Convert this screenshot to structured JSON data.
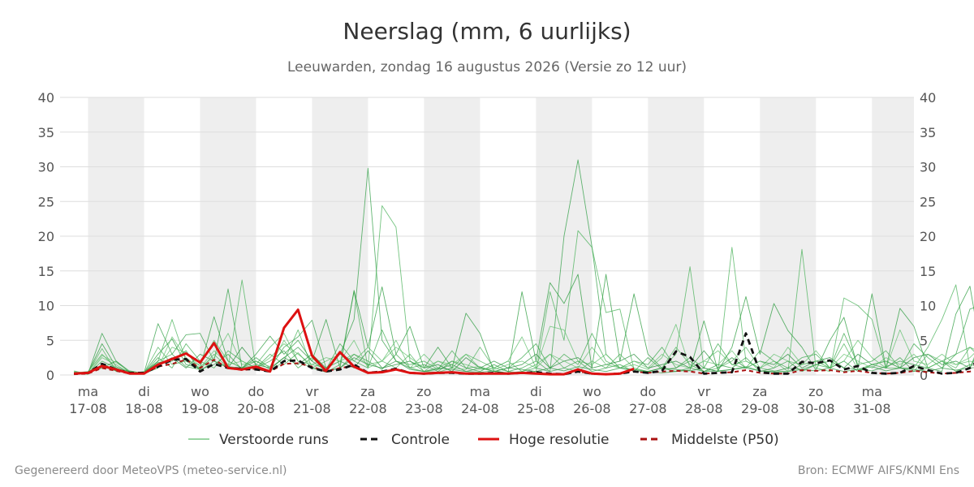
{
  "page": {
    "title": "Neerslag (mm, 6 uurlijks)",
    "subtitle": "Leeuwarden, zondag 16 augustus 2026 (Versie zo 12 uur)",
    "footer_left": "Gegenereerd door MeteoVPS (meteo-service.nl)",
    "footer_right": "Bron: ECMWF AIFS/KNMI Ens"
  },
  "chart_data": {
    "type": "line",
    "title": "Neerslag (mm, 6 uurlijks)",
    "subtitle": "Leeuwarden, zondag 16 augustus 2026 (Versie zo 12 uur)",
    "xlabel": "",
    "ylabel": "",
    "ylim": [
      0,
      40
    ],
    "yticks": [
      "0",
      "5",
      "10",
      "15",
      "20",
      "25",
      "30",
      "35",
      "40"
    ],
    "xlim": [
      "2026-08-16 12:00",
      "2026-08-31 18:00"
    ],
    "x_tick_labels": [
      {
        "day": "ma",
        "date": "17-08"
      },
      {
        "day": "di",
        "date": "18-08"
      },
      {
        "day": "wo",
        "date": "19-08"
      },
      {
        "day": "do",
        "date": "20-08"
      },
      {
        "day": "vr",
        "date": "21-08"
      },
      {
        "day": "za",
        "date": "22-08"
      },
      {
        "day": "zo",
        "date": "23-08"
      },
      {
        "day": "ma",
        "date": "24-08"
      },
      {
        "day": "di",
        "date": "25-08"
      },
      {
        "day": "wo",
        "date": "26-08"
      },
      {
        "day": "do",
        "date": "27-08"
      },
      {
        "day": "vr",
        "date": "28-08"
      },
      {
        "day": "za",
        "date": "29-08"
      },
      {
        "day": "zo",
        "date": "30-08"
      },
      {
        "day": "ma",
        "date": "31-08"
      }
    ],
    "shaded_days": [
      "17-08",
      "19-08",
      "21-08",
      "23-08",
      "25-08",
      "27-08",
      "29-08",
      "31-08"
    ],
    "grid": true,
    "right_axis": true,
    "legend_position": "bottom",
    "x_start": "2026-08-16 18:00",
    "x_step_hours": 6,
    "series": [
      {
        "name": "Hoge resolutie",
        "color": "#dd1111",
        "style": "solid",
        "values": [
          0.2,
          0.3,
          1.3,
          0.8,
          0.2,
          0.2,
          1.5,
          2.3,
          3.1,
          1.8,
          4.6,
          1.0,
          0.8,
          1.2,
          0.5,
          6.8,
          9.4,
          2.8,
          0.6,
          3.3,
          1.2,
          0.3,
          0.4,
          0.8,
          0.3,
          0.2,
          0.3,
          0.4,
          0.2,
          0.2,
          0.2,
          0.2,
          0.3,
          0.2,
          0.1,
          0.1,
          0.8,
          0.2,
          0.1,
          0.2,
          0.9
        ]
      },
      {
        "name": "Controle",
        "color": "#111111",
        "style": "dashed",
        "values": [
          0.2,
          0.3,
          1.6,
          0.8,
          0.3,
          0.3,
          1.2,
          2.2,
          2.3,
          0.5,
          1.6,
          1.0,
          0.9,
          0.8,
          0.5,
          2.0,
          2.1,
          1.0,
          0.5,
          0.8,
          1.5,
          0.3,
          0.5,
          0.9,
          0.3,
          0.2,
          0.3,
          0.3,
          0.2,
          0.2,
          0.3,
          0.2,
          0.3,
          0.4,
          0.2,
          0.1,
          0.5,
          0.2,
          0.1,
          0.2,
          0.5,
          0.3,
          0.6,
          3.4,
          2.6,
          0.2,
          0.3,
          0.4,
          6.0,
          0.4,
          0.2,
          0.2,
          1.9,
          1.7,
          2.1,
          0.8,
          1.3,
          0.3,
          0.2,
          0.3,
          1.3,
          0.7,
          0.2,
          0.3,
          1.0,
          2.9
        ]
      },
      {
        "name": "Middelste (P50)",
        "color": "#aa1111",
        "style": "dashed",
        "values": [
          0.1,
          0.2,
          1.0,
          0.6,
          0.2,
          0.2,
          1.2,
          1.6,
          2.2,
          1.0,
          2.2,
          1.0,
          0.7,
          0.9,
          0.5,
          1.6,
          1.7,
          1.2,
          0.5,
          1.0,
          1.3,
          0.3,
          0.5,
          0.8,
          0.3,
          0.2,
          0.3,
          0.4,
          0.2,
          0.2,
          0.3,
          0.2,
          0.3,
          0.3,
          0.2,
          0.1,
          0.5,
          0.2,
          0.1,
          0.2,
          0.5,
          0.3,
          0.5,
          0.6,
          0.5,
          0.2,
          0.3,
          0.4,
          0.7,
          0.3,
          0.2,
          0.2,
          0.7,
          0.6,
          0.7,
          0.4,
          0.6,
          0.3,
          0.2,
          0.3,
          0.6,
          0.4,
          0.2,
          0.3,
          0.5,
          0.8
        ]
      }
    ],
    "ensemble": {
      "name": "Verstoorde runs",
      "color": "#33aa44",
      "members": [
        [
          0.5,
          0.2,
          6.0,
          2.0,
          0.5,
          0.3,
          7.4,
          3.0,
          5.8,
          6.0,
          2.0,
          12.4,
          1.0,
          2.5,
          1.0,
          4.0,
          5.5,
          7.9,
          1.0,
          3.0,
          8.0,
          29.8,
          5.0,
          2.0,
          1.0,
          0.5,
          0.8,
          1.5,
          0.5,
          0.4,
          0.6,
          0.3,
          0.5,
          1.0,
          0.5,
          20.0,
          31.0,
          18.5,
          3.0,
          1.0,
          0.8,
          0.5,
          0.3,
          0.5,
          1.0,
          0.5,
          0.6,
          0.8,
          1.2,
          0.6,
          0.4,
          0.5,
          0.8,
          1.5,
          2.0,
          1.0,
          0.8,
          0.6,
          1.2,
          2.0,
          1.5,
          1.0,
          2.0,
          3.0,
          9.5,
          10.2
        ],
        [
          0.3,
          0.5,
          3.0,
          1.0,
          0.3,
          0.2,
          2.0,
          8.0,
          2.0,
          0.8,
          3.0,
          1.0,
          13.7,
          1.0,
          0.5,
          2.0,
          6.5,
          1.0,
          0.4,
          1.5,
          12.0,
          1.0,
          24.4,
          21.3,
          2.0,
          0.5,
          0.4,
          1.0,
          3.0,
          2.0,
          1.0,
          0.5,
          0.3,
          0.5,
          12.0,
          5.0,
          20.8,
          18.4,
          9.0,
          9.5,
          0.8,
          0.5,
          1.0,
          3.0,
          15.6,
          1.0,
          0.5,
          18.4,
          2.0,
          1.0,
          0.6,
          0.5,
          18.1,
          1.0,
          0.5,
          11.1,
          10.0,
          8.0,
          1.0,
          1.0,
          1.0,
          4.0,
          8.0,
          13.0,
          1.0,
          6.0
        ],
        [
          0.2,
          0.3,
          4.5,
          1.2,
          0.4,
          0.3,
          3.0,
          5.2,
          1.5,
          1.0,
          8.4,
          2.0,
          1.0,
          3.0,
          5.6,
          3.0,
          5.0,
          2.0,
          8.0,
          1.0,
          12.2,
          4.0,
          12.7,
          3.0,
          7.0,
          1.0,
          4.0,
          1.0,
          8.9,
          6.0,
          0.5,
          0.3,
          12.0,
          2.0,
          13.3,
          10.3,
          14.5,
          1.0,
          14.5,
          2.0,
          11.7,
          3.0,
          1.0,
          0.5,
          0.7,
          7.8,
          0.6,
          4.0,
          11.3,
          3.0,
          10.3,
          6.4,
          4.0,
          0.7,
          5.0,
          8.3,
          1.0,
          11.7,
          1.0,
          9.6,
          7.0,
          1.0,
          0.5,
          8.8,
          12.8,
          1.0
        ],
        [
          0.6,
          0.1,
          2.5,
          1.5,
          0.2,
          0.5,
          1.0,
          4.0,
          3.2,
          1.2,
          2.5,
          6.0,
          1.5,
          2.0,
          1.2,
          5.0,
          2.0,
          1.5,
          2.5,
          2.0,
          3.0,
          1.5,
          2.0,
          5.0,
          1.0,
          3.0,
          1.0,
          2.0,
          1.5,
          0.8,
          1.0,
          2.0,
          5.5,
          1.0,
          7.0,
          6.5,
          2.0,
          1.5,
          3.0,
          1.0,
          1.5,
          0.8,
          2.5,
          7.3,
          1.0,
          2.0,
          3.5,
          1.5,
          2.0,
          1.0,
          3.0,
          2.0,
          1.5,
          3.5,
          1.0,
          2.0,
          5.0,
          2.5,
          1.0,
          6.5,
          2.0,
          1.5,
          3.0,
          1.5,
          2.0,
          1.5
        ],
        [
          0.4,
          0.2,
          1.5,
          0.8,
          0.6,
          0.2,
          2.5,
          1.0,
          4.5,
          2.0,
          1.0,
          3.5,
          2.0,
          1.0,
          3.0,
          1.5,
          3.2,
          1.0,
          0.8,
          4.5,
          2.0,
          1.0,
          6.5,
          2.0,
          1.5,
          2.0,
          0.8,
          3.5,
          1.0,
          1.2,
          0.5,
          1.0,
          2.5,
          4.5,
          1.0,
          3.0,
          1.5,
          6.0,
          2.0,
          1.0,
          2.0,
          1.5,
          4.0,
          1.0,
          2.5,
          1.0,
          4.5,
          1.5,
          1.0,
          3.5,
          2.0,
          1.0,
          2.5,
          3.0,
          1.0,
          6.0,
          1.5,
          2.0,
          3.5,
          1.0,
          4.5,
          2.5,
          1.0,
          3.0,
          4.0,
          2.0
        ],
        [
          0.1,
          0.4,
          1.0,
          2.0,
          0.3,
          0.1,
          1.5,
          2.5,
          1.0,
          3.0,
          2.0,
          1.0,
          4.0,
          1.5,
          1.0,
          2.5,
          1.5,
          3.0,
          1.0,
          2.0,
          1.0,
          3.5,
          1.0,
          1.5,
          2.0,
          1.0,
          1.5,
          0.5,
          2.5,
          1.0,
          2.0,
          1.0,
          1.5,
          3.0,
          1.0,
          2.0,
          2.5,
          1.0,
          1.5,
          2.0,
          3.0,
          1.0,
          1.5,
          2.0,
          1.0,
          3.5,
          1.0,
          2.5,
          1.0,
          2.0,
          1.5,
          3.0,
          1.0,
          2.0,
          2.5,
          1.0,
          3.0,
          1.5,
          2.0,
          1.0,
          2.5,
          3.0,
          1.5,
          2.0,
          1.0,
          5.0
        ],
        [
          0.3,
          0.3,
          3.8,
          0.5,
          0.4,
          0.3,
          4.0,
          1.5,
          2.0,
          1.5,
          5.0,
          2.0,
          1.0,
          1.5,
          4.0,
          6.0,
          2.0,
          1.0,
          2.0,
          3.0,
          2.0,
          4.0,
          2.0,
          1.0,
          3.0,
          0.5,
          2.0,
          1.0,
          0.8,
          4.0,
          1.0,
          2.0,
          0.5,
          1.5,
          3.0,
          1.0,
          0.5,
          2.0,
          1.0,
          3.0,
          1.0,
          0.5,
          1.0,
          4.0,
          1.5,
          0.5,
          1.0,
          2.0,
          4.0,
          1.0,
          2.0,
          0.5,
          1.5,
          2.0,
          1.0,
          4.5,
          0.8,
          1.5,
          2.0,
          1.0,
          0.5,
          3.0,
          2.0,
          1.0,
          4.0,
          3.0
        ],
        [
          0.2,
          0.1,
          2.0,
          1.0,
          0.2,
          0.4,
          2.0,
          3.0,
          1.2,
          0.8,
          1.5,
          3.0,
          0.8,
          1.0,
          2.0,
          3.5,
          1.0,
          2.5,
          0.5,
          1.0,
          3.0,
          2.0,
          0.8,
          3.0,
          1.0,
          1.5,
          0.5,
          2.0,
          1.0,
          0.5,
          1.5,
          0.5,
          1.0,
          2.0,
          0.5,
          1.0,
          2.0,
          0.5,
          1.0,
          1.5,
          0.5,
          2.5,
          0.8,
          1.0,
          2.0,
          0.5,
          1.5,
          1.0,
          2.5,
          0.5,
          1.0,
          2.0,
          0.5,
          1.5,
          1.0,
          2.0,
          0.5,
          1.5,
          1.0,
          2.5,
          0.5,
          1.0,
          2.0,
          0.5,
          1.5,
          1.0
        ],
        [
          0.4,
          0.2,
          2.8,
          1.8,
          0.5,
          0.2,
          1.0,
          5.5,
          2.5,
          1.0,
          3.5,
          1.5,
          2.0,
          1.0,
          2.5,
          4.5,
          3.0,
          1.5,
          1.0,
          2.0,
          5.0,
          1.0,
          2.0,
          4.0,
          2.5,
          1.0,
          2.0,
          1.5,
          3.0,
          1.0,
          0.8,
          1.5,
          2.0,
          1.0,
          3.0,
          2.0,
          1.0,
          4.0,
          1.5,
          1.0,
          2.0,
          1.0,
          3.0,
          1.5,
          1.0,
          2.0,
          1.5,
          3.5,
          1.0,
          2.0,
          1.0,
          4.0,
          1.5,
          2.0,
          1.0,
          3.0,
          2.0,
          1.0,
          2.5,
          1.5,
          3.0,
          1.0,
          2.0,
          1.5,
          2.5,
          4.5
        ],
        [
          0.2,
          0.3,
          1.2,
          0.6,
          0.3,
          0.3,
          1.8,
          2.0,
          3.5,
          0.6,
          2.0,
          1.2,
          1.0,
          2.0,
          0.8,
          2.5,
          4.0,
          2.0,
          0.6,
          1.0,
          2.5,
          1.5,
          1.0,
          2.0,
          0.8,
          0.5,
          1.0,
          0.8,
          0.5,
          1.0,
          0.5,
          1.0,
          0.8,
          0.5,
          1.0,
          0.6,
          1.2,
          0.8,
          0.5,
          1.0,
          0.6,
          0.5,
          1.0,
          0.8,
          0.6,
          1.0,
          0.5,
          0.8,
          1.0,
          0.6,
          0.5,
          1.0,
          0.8,
          0.6,
          1.0,
          0.5,
          0.8,
          1.2,
          0.6,
          1.0,
          0.8,
          0.5,
          1.0,
          0.7,
          1.0,
          1.2
        ]
      ]
    }
  },
  "legend": [
    {
      "label": "Verstoorde runs",
      "color": "#33aa44",
      "style": "thin"
    },
    {
      "label": "Controle",
      "color": "#111111",
      "style": "dashed"
    },
    {
      "label": "Hoge resolutie",
      "color": "#dd1111",
      "style": "solid"
    },
    {
      "label": "Middelste (P50)",
      "color": "#aa1111",
      "style": "dashed"
    }
  ]
}
